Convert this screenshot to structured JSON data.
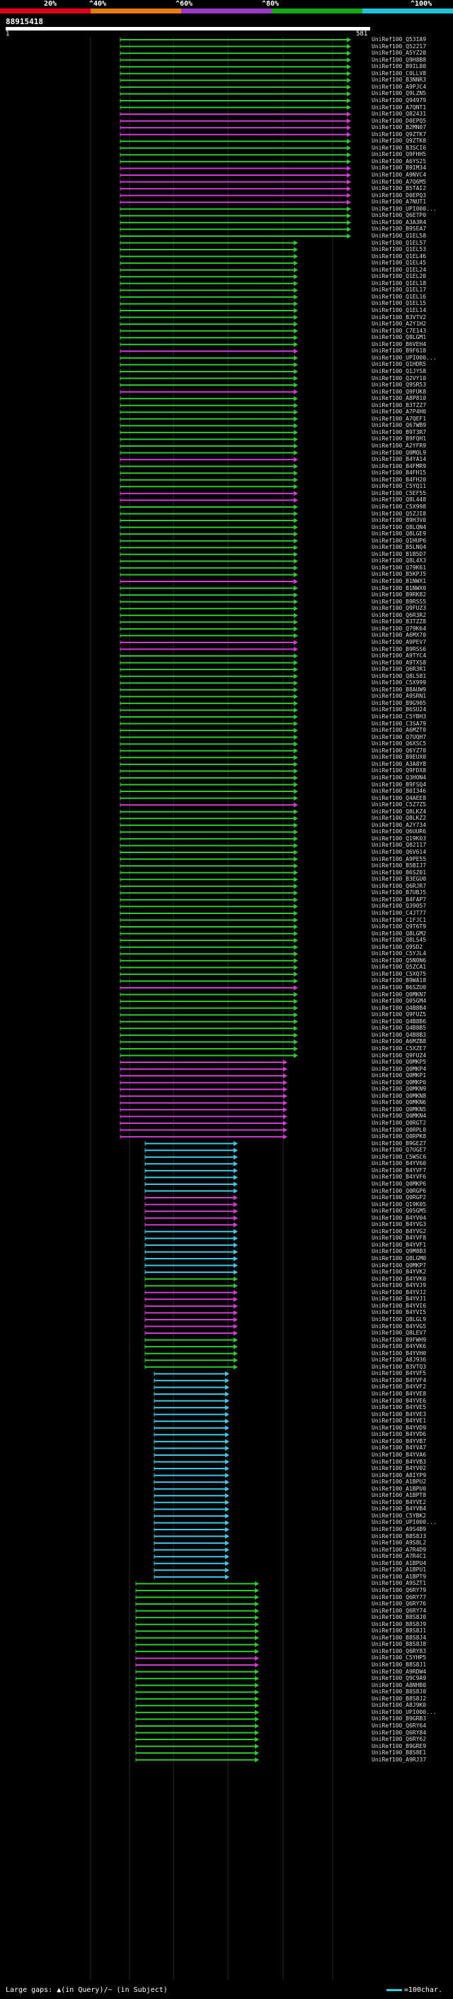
{
  "percent_scale": {
    "labels": [
      "20%",
      "^40%",
      "^60%",
      "^80%",
      "^100%"
    ],
    "colors": [
      "#e0001a",
      "#e87a10",
      "#9a38c8",
      "#17a817",
      "#20c4d8"
    ]
  },
  "query": {
    "id": "88915418",
    "start_label": "1",
    "end_label": "581"
  },
  "hit_colors": {
    "green": "#2bcc2b",
    "magenta": "#d23ad2",
    "cyan": "#3fc8e6",
    "dot": "#ffffff"
  },
  "hits_ids": [
    "UniRef100_Q53IA9",
    "UniRef100_Q52217",
    "UniRef100_A5YZ20",
    "UniRef100_Q9H8B8",
    "UniRef100_B9IL80",
    "UniRef100_C0LLV8",
    "UniRef100_B3NNR3",
    "UniRef100_A9PJC4",
    "UniRef100_Q9LZN5",
    "UniRef100_Q94979",
    "UniRef100_A7QNT1",
    "UniRef100_Q82431",
    "UniRef100_D0EPQ5",
    "UniRef100_B2MN07",
    "UniRef100_Q9ZTK7",
    "UniRef100_Q9ZTK8",
    "UniRef100_B3SCI6",
    "UniRef100_Q9FHH5",
    "UniRef100_A6YS25",
    "UniRef100_B9IM34",
    "UniRef100_A9NVC4",
    "UniRef100_A7Q6M5",
    "UniRef100_B5TAI2",
    "UniRef100_D0EPQ3",
    "UniRef100_A7NUT1",
    "UniRef100_UPI000...",
    "UniRef100_Q6ETP0",
    "UniRef100_A3A3R4",
    "UniRef100_B9SEA7",
    "UniRef100_Q1EL58",
    "UniRef100_Q1EL57",
    "UniRef100_Q1EL53",
    "UniRef100_Q1EL46",
    "UniRef100_Q1EL45",
    "UniRef100_Q1EL24",
    "UniRef100_Q1EL20",
    "UniRef100_Q1EL18",
    "UniRef100_Q1EL17",
    "UniRef100_Q1EL16",
    "UniRef100_Q1EL15",
    "UniRef100_Q1EL14",
    "UniRef100_B3VTV2",
    "UniRef100_A2Y1H2",
    "UniRef100_C7E143",
    "UniRef100_Q8LGM1",
    "UniRef100_B6VEH4",
    "UniRef100_B9F618",
    "UniRef100_UPI000...",
    "UniRef100_Q1HDR5",
    "UniRef100_Q1JYS8",
    "UniRef100_Q2VY10",
    "UniRef100_Q9SR53",
    "UniRef100_Q9FUK8",
    "UniRef100_A8P810",
    "UniRef100_B3TZZ7",
    "UniRef100_A7P4H0",
    "UniRef100_A7QEF1",
    "UniRef100_Q67WB9",
    "UniRef100_B9T3R7",
    "UniRef100_B9FQH1",
    "UniRef100_A2YFR9",
    "UniRef100_Q0MQL9",
    "UniRef100_B4YA14",
    "UniRef100_B4FMR9",
    "UniRef100_B4FH15",
    "UniRef100_B4FH20",
    "UniRef100_C5YQ11",
    "UniRef100_C5EF55",
    "UniRef100_Q8L448",
    "UniRef100_C5X998",
    "UniRef100_Q5ZJI8",
    "UniRef100_B9H3V0",
    "UniRef100_Q8LQN4",
    "UniRef100_Q8LGE9",
    "UniRef100_Q1HUP6",
    "UniRef100_B5LNQ4",
    "UniRef100_B1B5D7",
    "UniRef100_Q8L4X3",
    "UniRef100_Q79K61",
    "UniRef100_B5KPJ5",
    "UniRef100_B1NWX1",
    "UniRef100_B1NWX0",
    "UniRef100_B9RK82",
    "UniRef100_B9RSS5",
    "UniRef100_Q9FUZ3",
    "UniRef100_Q6R3R2",
    "UniRef100_B3TZZ8",
    "UniRef100_Q79K64",
    "UniRef100_A6MX70",
    "UniRef100_A9PEV7",
    "UniRef100_B9RSS6",
    "UniRef100_A9TYC4",
    "UniRef100_A9TXS8",
    "UniRef100_Q6R3R1",
    "UniRef100_Q8L581",
    "UniRef100_C5X999",
    "UniRef100_B8AUW9",
    "UniRef100_A9SRN1",
    "UniRef100_B9G905",
    "UniRef100_B6SU24",
    "UniRef100_C5YBH3",
    "UniRef100_C3SA79",
    "UniRef100_A6MZT0",
    "UniRef100_Q7UQH7",
    "UniRef100_Q6XSC5",
    "UniRef100_Q6YZ70",
    "UniRef100_B9EUX0",
    "UniRef100_A3A8Y8",
    "UniRef100_Q9FDX8",
    "UniRef100_Q3HON4",
    "UniRef100_B9FSQ4",
    "UniRef100_B0I346",
    "UniRef100_Q4AEE8",
    "UniRef100_C5Z7Z5",
    "UniRef100_Q8LKZ4",
    "UniRef100_Q8LKZ2",
    "UniRef100_A2Y734",
    "UniRef100_Q6UUR6",
    "UniRef100_Q19K03",
    "UniRef100_Q82117",
    "UniRef100_Q6V614",
    "UniRef100_A9PE55",
    "UniRef100_B5BIJ7",
    "UniRef100_B6SZ01",
    "UniRef100_B3EGU0",
    "UniRef100_Q6RJR7",
    "UniRef100_B7UBJ5",
    "UniRef100_B4FAP7",
    "UniRef100_Q39057",
    "UniRef100_C4JT77",
    "UniRef100_C1FJC1",
    "UniRef100_Q9T6T9",
    "UniRef100_Q8LGM2",
    "UniRef100_Q8LS45",
    "UniRef100_Q9SD2",
    "UniRef100_C5YJL4",
    "UniRef100_Q5N0N6",
    "UniRef100_Q5ZCA1",
    "UniRef100_C5XQ75",
    "UniRef100_B9WA18",
    "UniRef100_B6SZU0",
    "UniRef100_Q0MKN7",
    "UniRef100_Q05GM4",
    "UniRef100_Q4B8B4",
    "UniRef100_Q9FUZ5",
    "UniRef100_Q4B8B6",
    "UniRef100_Q4B8B5",
    "UniRef100_Q4B8B3",
    "UniRef100_A6MZB8",
    "UniRef100_C5XZE7",
    "UniRef100_Q9FUZ4",
    "UniRef100_Q0MKP5",
    "UniRef100_Q0MKP4",
    "UniRef100_Q0MKP1",
    "UniRef100_Q0MKP0",
    "UniRef100_Q0MKN9",
    "UniRef100_Q0MKN8",
    "UniRef100_Q0MKN6",
    "UniRef100_Q0MKN5",
    "UniRef100_Q0MKN4",
    "UniRef100_Q0RGT2",
    "UniRef100_Q0RPL0",
    "UniRef100_Q0RPK8",
    "UniRef100_B9GEZ7",
    "UniRef100_Q7UGE7",
    "UniRef100_C5WSC6",
    "UniRef100_B4YV60",
    "UniRef100_B4YVF7",
    "UniRef100_B4YVF6",
    "UniRef100_Q0MKP6",
    "UniRef100_Q0RGP6",
    "UniRef100_Q0RGP2",
    "UniRef100_Q19K05",
    "UniRef100_Q05GM5",
    "UniRef100_B4YV04",
    "UniRef100_B4YVG3",
    "UniRef100_B4YVG2",
    "UniRef100_B4YVF8",
    "UniRef100_B4YVF1",
    "UniRef100_Q9M8B3",
    "UniRef100_Q8LGM0",
    "UniRef100_Q0MKP7",
    "UniRef100_B4YVK2",
    "UniRef100_B4YVK0",
    "UniRef100_B4YVJ9",
    "UniRef100_B4YVJ2",
    "UniRef100_B4YVJ1",
    "UniRef100_B4YVI6",
    "UniRef100_B4YVI5",
    "UniRef100_Q8LGL9",
    "UniRef100_B4YVG5",
    "UniRef100_Q8LEV7",
    "UniRef100_B9FWH9",
    "UniRef100_B4YVK6",
    "UniRef100_B4YVH0",
    "UniRef100_A8J936",
    "UniRef100_B3VTQ3",
    "UniRef100_B4YVF5",
    "UniRef100_B4YVF4",
    "UniRef100_B4YVF2",
    "UniRef100_B4YVE8",
    "UniRef100_B4YVE6",
    "UniRef100_B4YVE5",
    "UniRef100_B4YVE3",
    "UniRef100_B4YVE1",
    "UniRef100_B4YVD9",
    "UniRef100_B4YVD6",
    "UniRef100_B4YVB7",
    "UniRef100_B4YVA7",
    "UniRef100_B4YVA6",
    "UniRef100_B4YVB3",
    "UniRef100_B4YV02",
    "UniRef100_A8IYP9",
    "UniRef100_A1BPU2",
    "UniRef100_A1BPU0",
    "UniRef100_A1BPT8",
    "UniRef100_B4YVE2",
    "UniRef100_B4YVB4",
    "UniRef100_C5YBK2",
    "UniRef100_UPI000...",
    "UniRef100_A9S4B9",
    "UniRef100_B8S8J3",
    "UniRef100_A9S8L2",
    "UniRef100_A7R4D9",
    "UniRef100_A7R4C1",
    "UniRef100_A1BPU4",
    "UniRef100_A1BPU1",
    "UniRef100_A1BPT9",
    "UniRef100_A9SZT1",
    "UniRef100_Q6RY79",
    "UniRef100_Q6RY77",
    "UniRef100_Q6RY76",
    "UniRef100_Q6RY74",
    "UniRef100_B8S8J0",
    "UniRef100_B8S8J9",
    "UniRef100_B8S8J1",
    "UniRef100_B8S8J4",
    "UniRef100_B8S8J8",
    "UniRef100_Q6RY83",
    "UniRef100_C5YHP5",
    "UniRef100_B8S8J1",
    "UniRef100_A9RDW4",
    "UniRef100_Q9C9A9",
    "UniRef100_A8NHB0",
    "UniRef100_B8S8J0",
    "UniRef100_B8S8J2",
    "UniRef100_A8J9K0",
    "UniRef100_UPI000...",
    "UniRef100_B9GRB3",
    "UniRef100_Q6RY64",
    "UniRef100_Q6RY84",
    "UniRef100_Q6RY62",
    "UniRef100_B9GRE9",
    "UniRef100_B8S8E1",
    "UniRef100_A9RJ37"
  ],
  "legend": {
    "left_text": "Large gaps: ▲(in Query)/~ (in Subject)",
    "right_text": "=100char."
  }
}
